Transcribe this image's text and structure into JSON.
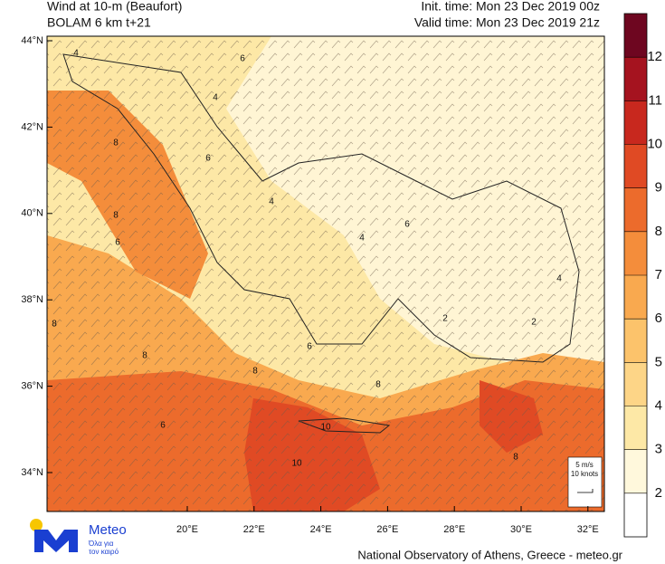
{
  "header": {
    "title_left": [
      "Wind at 10-m (Beaufort)",
      "BOLAM 6 km t+21"
    ],
    "title_right": [
      "Init. time: Mon 23 Dec 2019 00z",
      "Valid time: Mon 23 Dec 2019 21z"
    ]
  },
  "map": {
    "lat_ticks": [
      {
        "value": 44,
        "label": "44°N"
      },
      {
        "value": 42,
        "label": "42°N"
      },
      {
        "value": 40,
        "label": "40°N"
      },
      {
        "value": 38,
        "label": "38°N"
      },
      {
        "value": 36,
        "label": "36°N"
      },
      {
        "value": 34,
        "label": "34°N"
      }
    ],
    "lon_ticks": [
      {
        "value": 20,
        "label": "20°E"
      },
      {
        "value": 22,
        "label": "22°E"
      },
      {
        "value": 24,
        "label": "24°E"
      },
      {
        "value": 26,
        "label": "26°E"
      },
      {
        "value": 28,
        "label": "28°E"
      },
      {
        "value": 30,
        "label": "30°E"
      },
      {
        "value": 32,
        "label": "32°E"
      }
    ],
    "contour_labels": [
      "6",
      "4",
      "8",
      "6",
      "8",
      "4",
      "4",
      "6",
      "8",
      "6",
      "8",
      "2",
      "2",
      "4",
      "6",
      "8",
      "10",
      "10",
      "8",
      "6",
      "4",
      "8"
    ],
    "legend": [
      "5 m/s",
      "10 knots"
    ]
  },
  "colorbar": {
    "levels": [
      2,
      3,
      4,
      5,
      6,
      7,
      8,
      9,
      10,
      11,
      12
    ],
    "colors": [
      "#ffffff",
      "#fff8dc",
      "#fde8a6",
      "#fdd587",
      "#fcc36b",
      "#f9a94f",
      "#f48d3b",
      "#ec6b2c",
      "#e04a24",
      "#c8281e",
      "#a5131f",
      "#6e0620"
    ]
  },
  "footer": {
    "credit": "National Observatory of Athens, Greece - meteo.gr",
    "logo": "Meteo",
    "slogan": [
      "Όλα για",
      "τον καιρό"
    ]
  }
}
